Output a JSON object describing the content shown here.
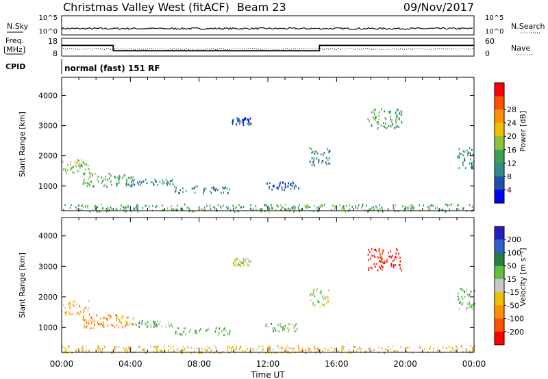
{
  "header": {
    "title": "Christmas Valley West (fitACF)",
    "beam": "Beam 23",
    "date": "09/Nov/2017"
  },
  "strip": {
    "nsky_label": "N.Sky",
    "nsearch_label": "N.Search",
    "noise_ticks": [
      "10^5",
      "10^0"
    ],
    "freq_label": "Freq.",
    "freq_unit": "[MHz]",
    "freq_ticks": [
      "18",
      "8"
    ],
    "nave_label": "Nave",
    "nave_ticks": [
      "60",
      "0"
    ],
    "cpid_label": "CPID",
    "cpid_text": "normal (fast) 151 RF",
    "freq_steps": [
      {
        "from": 0,
        "to": 3,
        "mhz": 14
      },
      {
        "from": 3,
        "to": 15,
        "mhz": 11
      },
      {
        "from": 15,
        "to": 24,
        "mhz": 14
      }
    ]
  },
  "chart_data": [
    {
      "type": "heatmap",
      "name_key": "power",
      "xlabel": "Time UT",
      "ylabel": "Slant Range [km]",
      "xlim": [
        0,
        24
      ],
      "ylim": [
        180,
        4600
      ],
      "x_ticks": [
        "00:00",
        "04:00",
        "08:00",
        "12:00",
        "16:00",
        "20:00",
        "00:00"
      ],
      "y_ticks": [
        1000,
        2000,
        3000,
        4000
      ],
      "colorbar": {
        "label": "Power [dB]",
        "ticks": [
          "4",
          "8",
          "12",
          "16",
          "20",
          "24",
          "28"
        ],
        "colors": [
          "#0000ff",
          "#1e50a8",
          "#2e8b8b",
          "#3ca050",
          "#8cc03c",
          "#f0c000",
          "#ff9000",
          "#ff5000",
          "#ff0000"
        ]
      },
      "regions": [
        {
          "t0": 0.0,
          "t1": 1.6,
          "r0": 1450,
          "r1": 1900,
          "c": 4
        },
        {
          "t0": 1.2,
          "t1": 4.2,
          "r0": 1000,
          "r1": 1450,
          "c": 3
        },
        {
          "t0": 4.0,
          "t1": 6.5,
          "r0": 1050,
          "r1": 1250,
          "c": 2
        },
        {
          "t0": 6.5,
          "t1": 9.8,
          "r0": 780,
          "r1": 1020,
          "c": 2
        },
        {
          "t0": 11.8,
          "t1": 13.8,
          "r0": 900,
          "r1": 1150,
          "c": 1
        },
        {
          "t0": 9.9,
          "t1": 11.0,
          "r0": 3050,
          "r1": 3300,
          "c": 1
        },
        {
          "t0": 14.4,
          "t1": 15.6,
          "r0": 1700,
          "r1": 2300,
          "c": 2
        },
        {
          "t0": 17.8,
          "t1": 19.8,
          "r0": 2900,
          "r1": 3600,
          "c": 3
        },
        {
          "t0": 23.0,
          "t1": 24.0,
          "r0": 1600,
          "r1": 2300,
          "c": 2
        },
        {
          "t0": 0.0,
          "t1": 24.0,
          "r0": 180,
          "r1": 420,
          "c": 3
        }
      ]
    },
    {
      "type": "heatmap",
      "name_key": "velocity",
      "xlabel": "Time UT",
      "ylabel": "Slant Range [km]",
      "xlim": [
        0,
        24
      ],
      "ylim": [
        180,
        4600
      ],
      "x_ticks": [
        "00:00",
        "04:00",
        "08:00",
        "12:00",
        "16:00",
        "20:00",
        "00:00"
      ],
      "y_ticks": [
        1000,
        2000,
        3000,
        4000
      ],
      "colorbar": {
        "label": "Velocity [m s⁻¹]",
        "ticks": [
          "200",
          "100",
          "50",
          "15",
          "-15",
          "-50",
          "-100",
          "-200"
        ],
        "colors": [
          "#2020c0",
          "#3060d0",
          "#208040",
          "#60c040",
          "#c8c8c8",
          "#f0c000",
          "#ff9000",
          "#ff5000",
          "#ff0000"
        ]
      },
      "regions": [
        {
          "t0": 0.0,
          "t1": 1.6,
          "r0": 1450,
          "r1": 1900,
          "c": 5
        },
        {
          "t0": 1.2,
          "t1": 4.2,
          "r0": 1000,
          "r1": 1450,
          "c": 6
        },
        {
          "t0": 4.0,
          "t1": 6.5,
          "r0": 1050,
          "r1": 1250,
          "c": 3
        },
        {
          "t0": 6.5,
          "t1": 9.8,
          "r0": 780,
          "r1": 1020,
          "c": 3
        },
        {
          "t0": 11.8,
          "t1": 13.8,
          "r0": 900,
          "r1": 1150,
          "c": 3
        },
        {
          "t0": 9.9,
          "t1": 11.0,
          "r0": 3050,
          "r1": 3300,
          "c": 4
        },
        {
          "t0": 14.4,
          "t1": 15.6,
          "r0": 1700,
          "r1": 2300,
          "c": 4
        },
        {
          "t0": 17.8,
          "t1": 19.8,
          "r0": 2900,
          "r1": 3600,
          "c": 8
        },
        {
          "t0": 23.0,
          "t1": 24.0,
          "r0": 1600,
          "r1": 2300,
          "c": 3
        },
        {
          "t0": 0.0,
          "t1": 24.0,
          "r0": 180,
          "r1": 420,
          "c": 5
        }
      ]
    }
  ]
}
